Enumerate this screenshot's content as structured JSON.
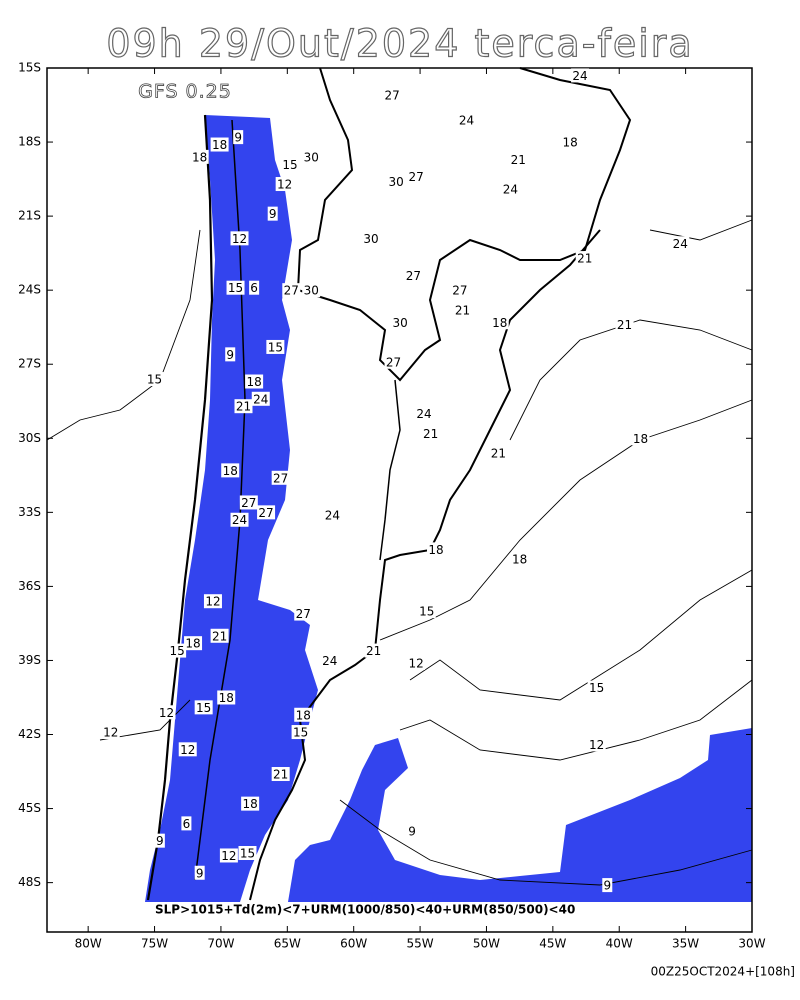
{
  "chart_data": {
    "type": "map",
    "title": "09h 29/Out/2024 terca-feira",
    "model": "GFS 0.25",
    "legend": "SLP>1015+Td(2m)<7+URM(1000/850)<40+URM(850/500)<40",
    "footer": "00Z25OCT2024+[108h]",
    "xlim": [
      -83.1,
      -30
    ],
    "ylim": [
      -15,
      -50
    ],
    "xticks": [
      {
        "value": -80,
        "label": "80W"
      },
      {
        "value": -75,
        "label": "75W"
      },
      {
        "value": -70,
        "label": "70W"
      },
      {
        "value": -65,
        "label": "65W"
      },
      {
        "value": -60,
        "label": "60W"
      },
      {
        "value": -55,
        "label": "55W"
      },
      {
        "value": -50,
        "label": "50W"
      },
      {
        "value": -45,
        "label": "45W"
      },
      {
        "value": -40,
        "label": "40W"
      },
      {
        "value": -35,
        "label": "35W"
      },
      {
        "value": -30,
        "label": "30W"
      }
    ],
    "yticks": [
      {
        "value": -15,
        "label": "15S"
      },
      {
        "value": -18,
        "label": "18S"
      },
      {
        "value": -21,
        "label": "21S"
      },
      {
        "value": -24,
        "label": "24S"
      },
      {
        "value": -27,
        "label": "27S"
      },
      {
        "value": -30,
        "label": "30S"
      },
      {
        "value": -33,
        "label": "33S"
      },
      {
        "value": -36,
        "label": "36S"
      },
      {
        "value": -39,
        "label": "39S"
      },
      {
        "value": -42,
        "label": "42S"
      },
      {
        "value": -45,
        "label": "45S"
      },
      {
        "value": -48,
        "label": "48S"
      }
    ],
    "contour_labels": [
      {
        "value": 24,
        "lon": -42.95,
        "lat": -15.3
      },
      {
        "value": 27,
        "lon": -57.1,
        "lat": -16.1
      },
      {
        "value": 24,
        "lon": -51.5,
        "lat": -17.1
      },
      {
        "value": 18,
        "lon": -43.7,
        "lat": -18.0
      },
      {
        "value": 21,
        "lon": -47.6,
        "lat": -18.7
      },
      {
        "value": 18,
        "lon": -71.6,
        "lat": -18.6
      },
      {
        "value": 18,
        "lon": -70.1,
        "lat": -18.1
      },
      {
        "value": 9,
        "lon": -68.7,
        "lat": -17.8
      },
      {
        "value": 15,
        "lon": -64.8,
        "lat": -18.9
      },
      {
        "value": 30,
        "lon": -63.2,
        "lat": -18.6
      },
      {
        "value": 12,
        "lon": -65.2,
        "lat": -19.7
      },
      {
        "value": 30,
        "lon": -56.8,
        "lat": -19.6
      },
      {
        "value": 27,
        "lon": -55.3,
        "lat": -19.4
      },
      {
        "value": 24,
        "lon": -48.2,
        "lat": -19.9
      },
      {
        "value": 9,
        "lon": -66.1,
        "lat": -20.9
      },
      {
        "value": 24,
        "lon": -35.4,
        "lat": -22.1
      },
      {
        "value": 12,
        "lon": -68.6,
        "lat": -21.9
      },
      {
        "value": 30,
        "lon": -58.7,
        "lat": -21.9
      },
      {
        "value": 21,
        "lon": -42.6,
        "lat": -22.7
      },
      {
        "value": 27,
        "lon": -55.5,
        "lat": -23.4
      },
      {
        "value": 15,
        "lon": -68.9,
        "lat": -23.9
      },
      {
        "value": 6,
        "lon": -67.5,
        "lat": -23.9
      },
      {
        "value": 27,
        "lon": -64.7,
        "lat": -24.0
      },
      {
        "value": 30,
        "lon": -63.2,
        "lat": -24.0
      },
      {
        "value": 27,
        "lon": -52.0,
        "lat": -24.0
      },
      {
        "value": 21,
        "lon": -51.8,
        "lat": -24.8
      },
      {
        "value": 18,
        "lon": -49.0,
        "lat": -25.3
      },
      {
        "value": 21,
        "lon": -39.6,
        "lat": -25.4
      },
      {
        "value": 30,
        "lon": -56.5,
        "lat": -25.3
      },
      {
        "value": 15,
        "lon": -65.9,
        "lat": -26.3
      },
      {
        "value": 9,
        "lon": -69.3,
        "lat": -26.6
      },
      {
        "value": 27,
        "lon": -57.0,
        "lat": -26.9
      },
      {
        "value": 15,
        "lon": -75.0,
        "lat": -27.6
      },
      {
        "value": 18,
        "lon": -67.5,
        "lat": -27.7
      },
      {
        "value": 21,
        "lon": -68.3,
        "lat": -28.7
      },
      {
        "value": 24,
        "lon": -67.0,
        "lat": -28.4
      },
      {
        "value": 24,
        "lon": -54.7,
        "lat": -29.0
      },
      {
        "value": 21,
        "lon": -54.2,
        "lat": -29.8
      },
      {
        "value": 18,
        "lon": -38.4,
        "lat": -30.0
      },
      {
        "value": 21,
        "lon": -49.1,
        "lat": -30.6
      },
      {
        "value": 18,
        "lon": -69.3,
        "lat": -31.3
      },
      {
        "value": 27,
        "lon": -65.5,
        "lat": -31.6
      },
      {
        "value": 27,
        "lon": -67.9,
        "lat": -32.6
      },
      {
        "value": 27,
        "lon": -66.6,
        "lat": -33.0
      },
      {
        "value": 24,
        "lon": -68.6,
        "lat": -33.3
      },
      {
        "value": 24,
        "lon": -61.6,
        "lat": -33.1
      },
      {
        "value": 18,
        "lon": -53.8,
        "lat": -34.5
      },
      {
        "value": 18,
        "lon": -47.5,
        "lat": -34.9
      },
      {
        "value": 12,
        "lon": -70.6,
        "lat": -36.6
      },
      {
        "value": 27,
        "lon": -63.8,
        "lat": -37.1
      },
      {
        "value": 21,
        "lon": -70.1,
        "lat": -38.0
      },
      {
        "value": 18,
        "lon": -72.1,
        "lat": -38.3
      },
      {
        "value": 15,
        "lon": -73.3,
        "lat": -38.6
      },
      {
        "value": 24,
        "lon": -61.8,
        "lat": -39.0
      },
      {
        "value": 21,
        "lon": -58.5,
        "lat": -38.6
      },
      {
        "value": 15,
        "lon": -54.5,
        "lat": -37.0
      },
      {
        "value": 12,
        "lon": -55.3,
        "lat": -39.1
      },
      {
        "value": 15,
        "lon": -41.7,
        "lat": -40.1
      },
      {
        "value": 18,
        "lon": -69.6,
        "lat": -40.5
      },
      {
        "value": 15,
        "lon": -71.3,
        "lat": -40.9
      },
      {
        "value": 12,
        "lon": -74.1,
        "lat": -41.1
      },
      {
        "value": 18,
        "lon": -63.8,
        "lat": -41.2
      },
      {
        "value": 15,
        "lon": -64.0,
        "lat": -41.9
      },
      {
        "value": 12,
        "lon": -78.3,
        "lat": -41.9
      },
      {
        "value": 12,
        "lon": -41.7,
        "lat": -42.4
      },
      {
        "value": 12,
        "lon": -72.5,
        "lat": -42.6
      },
      {
        "value": 21,
        "lon": -65.5,
        "lat": -43.6
      },
      {
        "value": 18,
        "lon": -67.8,
        "lat": -44.8
      },
      {
        "value": 6,
        "lon": -72.6,
        "lat": -45.6
      },
      {
        "value": 9,
        "lon": -55.6,
        "lat": -45.9
      },
      {
        "value": 9,
        "lon": -74.6,
        "lat": -46.3
      },
      {
        "value": 15,
        "lon": -68.0,
        "lat": -46.8
      },
      {
        "value": 12,
        "lon": -69.4,
        "lat": -46.9
      },
      {
        "value": 9,
        "lon": -71.6,
        "lat": -47.6
      },
      {
        "value": 9,
        "lon": -40.9,
        "lat": -48.1
      }
    ]
  }
}
